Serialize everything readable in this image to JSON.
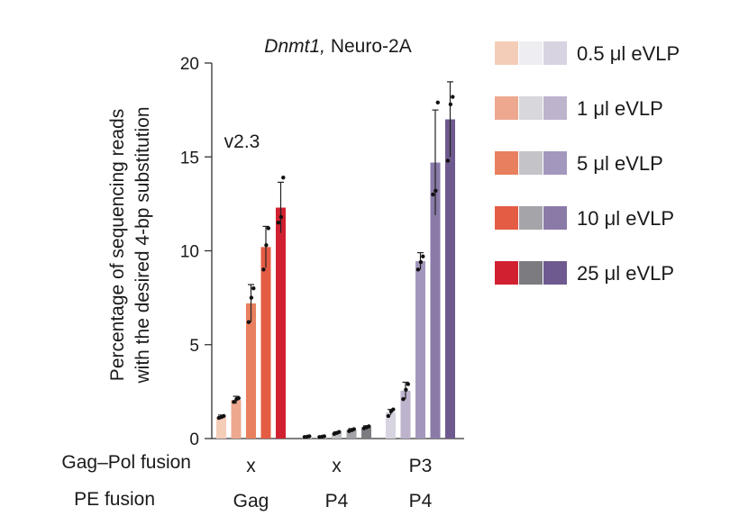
{
  "chart_data": {
    "type": "bar",
    "title_italic": "Dnmt1,",
    "title_rest": " Neuro-2A",
    "ylabel_line1": "Percentage of sequencing reads",
    "ylabel_line2": "with the desired 4-bp substitution",
    "ylim": [
      0,
      20
    ],
    "yticks": [
      "0",
      "5",
      "10",
      "15",
      "20"
    ],
    "row_labels": {
      "gagpol": "Gag–Pol fusion",
      "pe": "PE fusion"
    },
    "groups": [
      {
        "gagpol": "x",
        "pe": "Gag",
        "annotation": "v2.3",
        "colors": [
          "#f4cdb8",
          "#eda88f",
          "#e8805f",
          "#e55c45",
          "#d12131"
        ],
        "values": [
          1.15,
          2.05,
          7.2,
          10.2,
          12.3
        ],
        "errors": [
          0.1,
          0.2,
          1.0,
          1.1,
          1.35
        ],
        "points": [
          [
            1.1,
            1.15,
            1.2
          ],
          [
            1.95,
            2.1,
            2.15
          ],
          [
            6.2,
            7.5,
            8.0
          ],
          [
            9.0,
            10.3,
            11.2
          ],
          [
            11.5,
            11.8,
            13.9
          ]
        ]
      },
      {
        "gagpol": "x",
        "pe": "P4",
        "colors": [
          "#e7e7ee",
          "#d5d5da",
          "#bfbfc4",
          "#a2a2a7",
          "#7b7b80"
        ],
        "values": [
          0.1,
          0.1,
          0.3,
          0.45,
          0.6
        ],
        "errors": [
          0.03,
          0.03,
          0.06,
          0.08,
          0.08
        ],
        "points": [
          [
            0.08,
            0.1,
            0.12
          ],
          [
            0.08,
            0.1,
            0.12
          ],
          [
            0.25,
            0.3,
            0.35
          ],
          [
            0.4,
            0.45,
            0.5
          ],
          [
            0.55,
            0.6,
            0.65
          ]
        ]
      },
      {
        "gagpol": "P3",
        "pe": "P4",
        "colors": [
          "#d8d3e0",
          "#bdb3cd",
          "#a497bd",
          "#8a7aa8",
          "#6e5a8e"
        ],
        "values": [
          1.4,
          2.55,
          9.45,
          14.7,
          17.0
        ],
        "errors": [
          0.15,
          0.45,
          0.45,
          2.8,
          2.0
        ],
        "points": [
          [
            1.2,
            1.45,
            1.55
          ],
          [
            2.1,
            2.6,
            2.9
          ],
          [
            9.0,
            9.4,
            9.7
          ],
          [
            13.0,
            13.2,
            17.9
          ],
          [
            14.8,
            17.8,
            18.2
          ]
        ]
      }
    ],
    "legend": {
      "entries": [
        "0.5 μl eVLP",
        "1 μl eVLP",
        "5 μl eVLP",
        "10 μl eVLP",
        "25 μl eVLP"
      ],
      "swatches": [
        [
          "#f4cdb8",
          "#ededf2",
          "#d8d3e0"
        ],
        [
          "#eda88f",
          "#d7d7dc",
          "#bdb3cd"
        ],
        [
          "#e8805f",
          "#c3c3c8",
          "#a497bd"
        ],
        [
          "#e55c45",
          "#a4a4a9",
          "#8a7aa8"
        ],
        [
          "#d12131",
          "#7b7b80",
          "#6e5a8e"
        ]
      ],
      "placement": "right"
    },
    "axis_color": "#333333"
  }
}
